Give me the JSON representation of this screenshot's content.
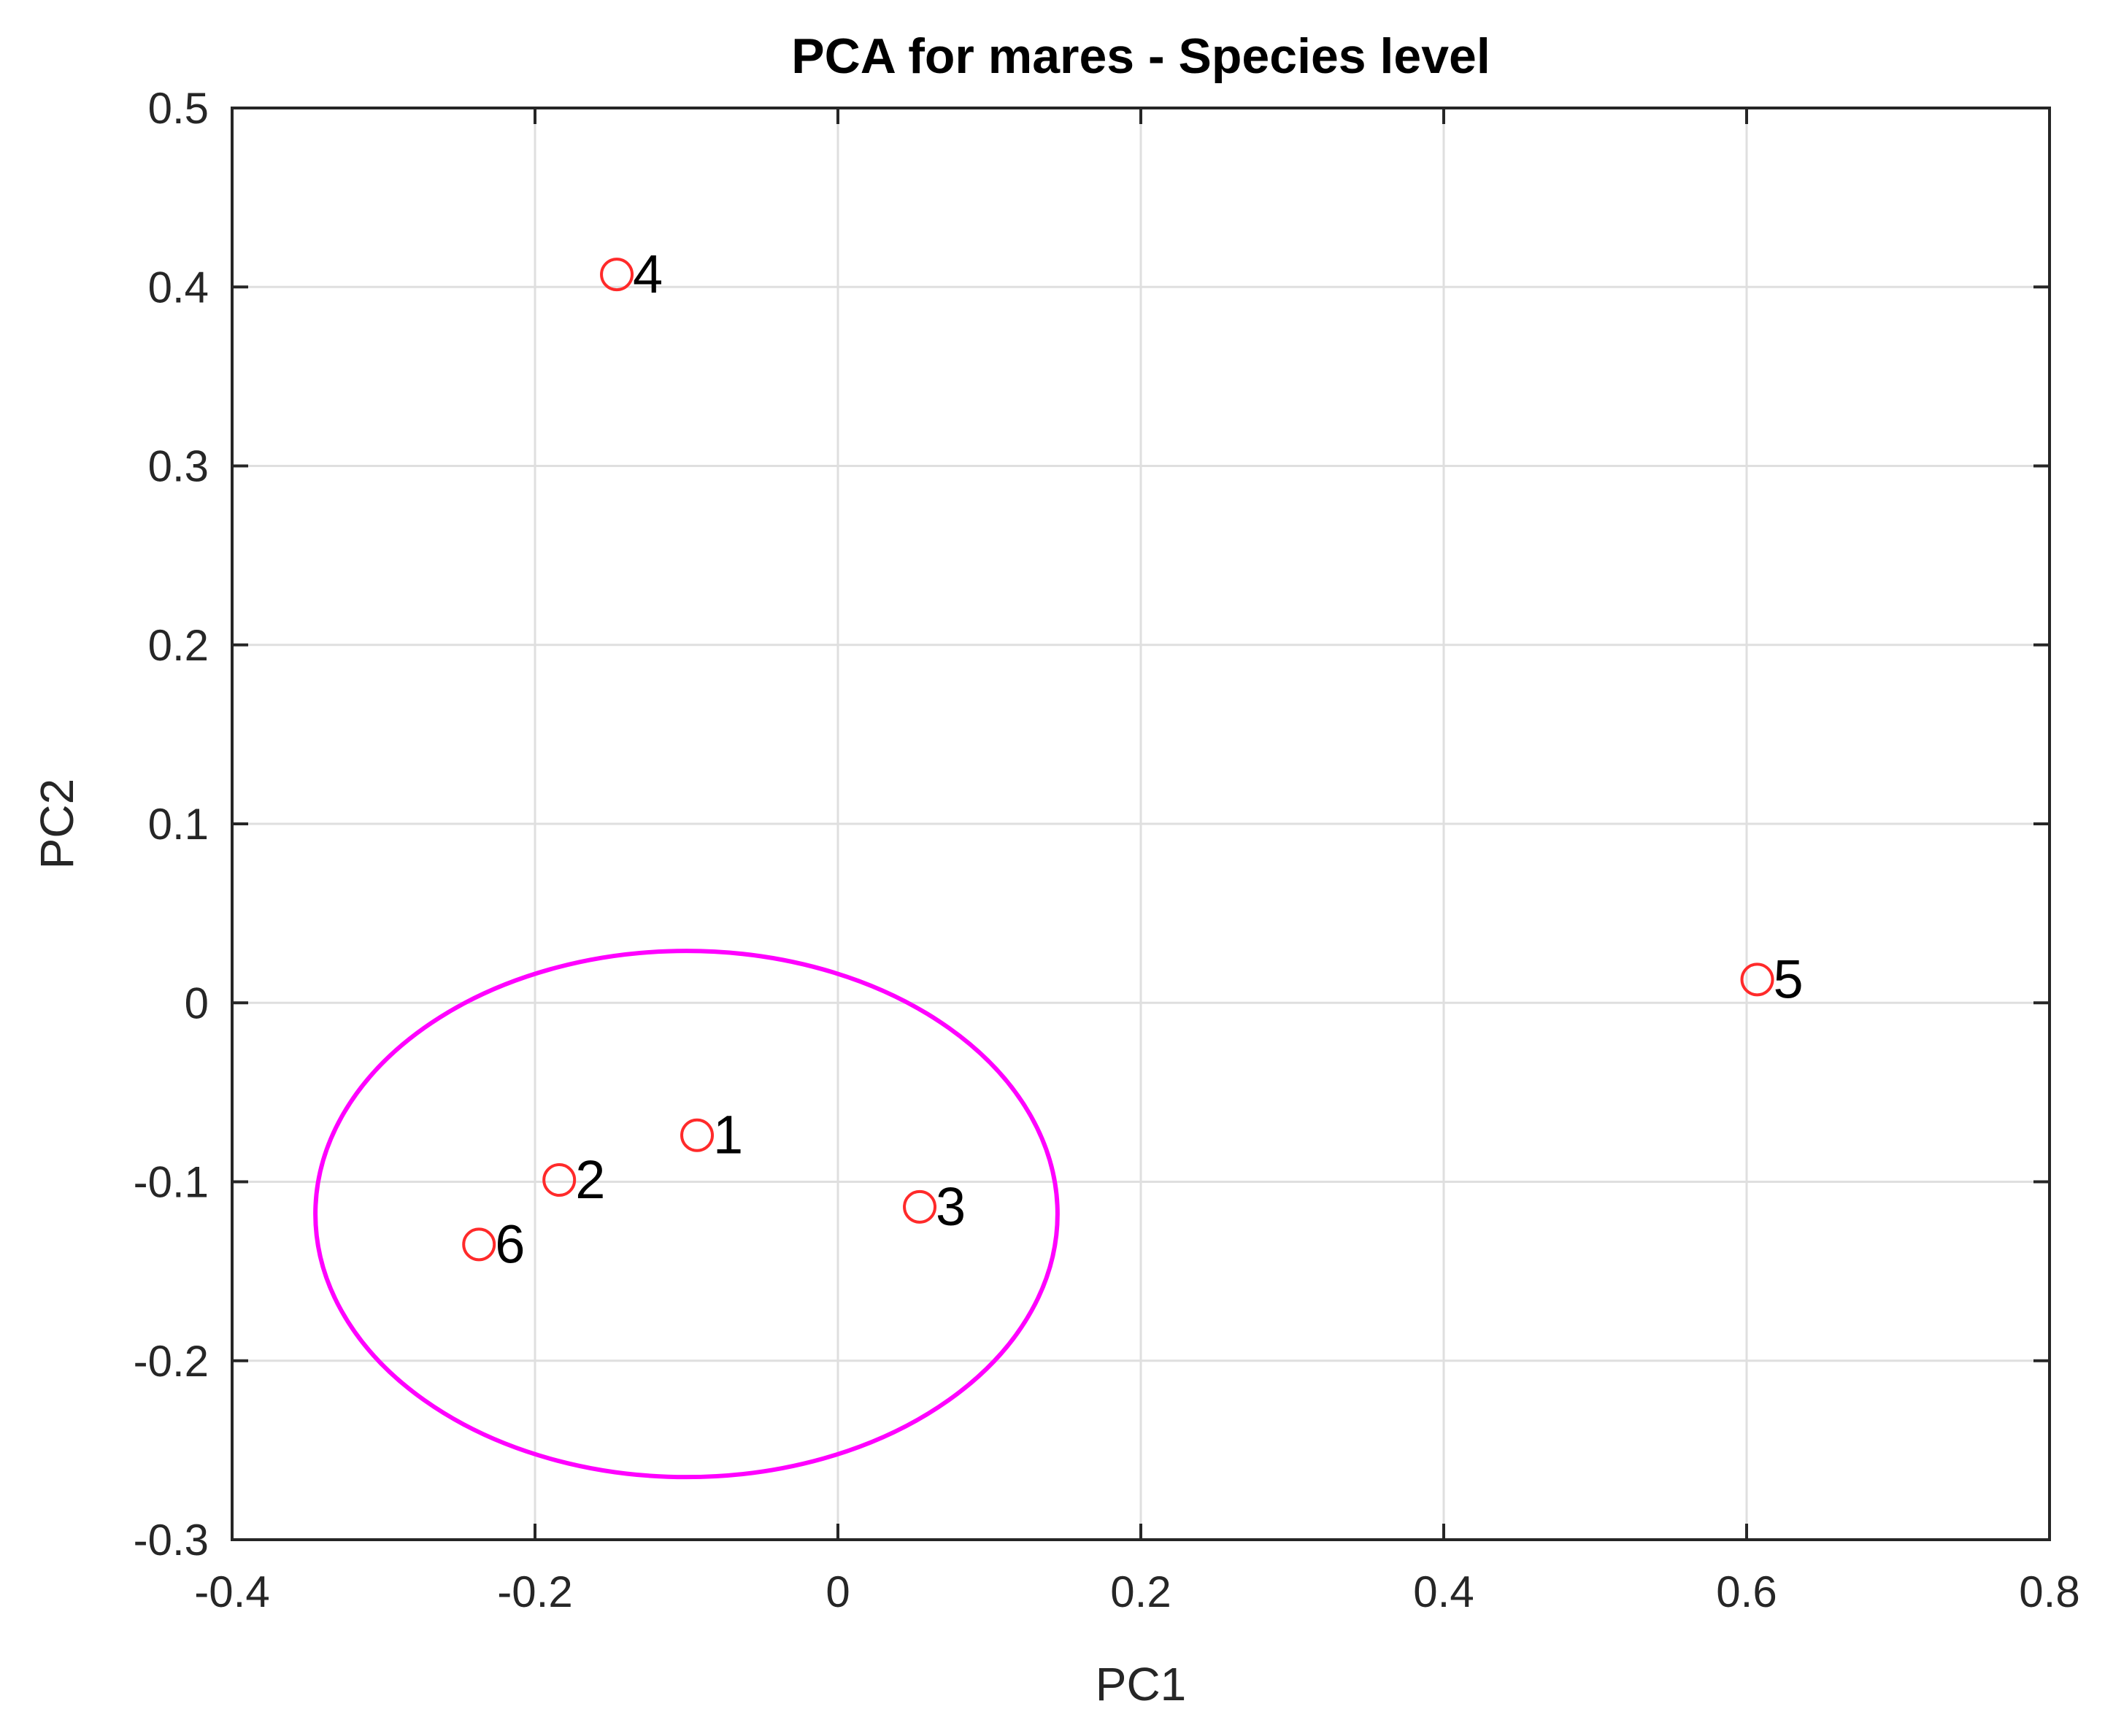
{
  "chart_data": {
    "type": "scatter",
    "title": "PCA for mares - Species level",
    "xlabel": "PC1",
    "ylabel": "PC2",
    "xlim": [
      -0.4,
      0.8
    ],
    "ylim": [
      -0.3,
      0.5
    ],
    "xticks": [
      -0.4,
      -0.2,
      0,
      0.2,
      0.4,
      0.6,
      0.8
    ],
    "yticks": [
      -0.3,
      -0.2,
      -0.1,
      0,
      0.1,
      0.2,
      0.3,
      0.4,
      0.5
    ],
    "xtick_labels": [
      "-0.4",
      "-0.2",
      "0",
      "0.2",
      "0.4",
      "0.6",
      "0.8"
    ],
    "ytick_labels": [
      "-0.3",
      "-0.2",
      "-0.1",
      "0",
      "0.1",
      "0.2",
      "0.3",
      "0.4",
      "0.5"
    ],
    "grid": true,
    "marker": "circle",
    "marker_color": "#ff2a2a",
    "points": [
      {
        "label": "1",
        "x": -0.093,
        "y": -0.074
      },
      {
        "label": "2",
        "x": -0.184,
        "y": -0.099
      },
      {
        "label": "3",
        "x": 0.054,
        "y": -0.114
      },
      {
        "label": "4",
        "x": -0.146,
        "y": 0.407
      },
      {
        "label": "5",
        "x": 0.607,
        "y": 0.013
      },
      {
        "label": "6",
        "x": -0.237,
        "y": -0.135
      }
    ],
    "ellipse": {
      "color": "#ff00ff",
      "center": [
        -0.1,
        -0.118
      ],
      "rx": 0.245,
      "ry": 0.147
    }
  }
}
